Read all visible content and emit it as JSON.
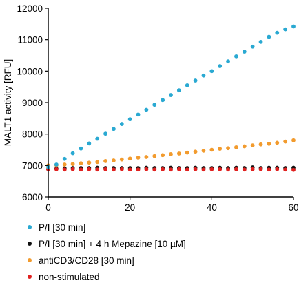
{
  "chart_data": {
    "type": "scatter",
    "title": "",
    "xlabel": "min",
    "ylabel": "MALT1 activity [RFU]",
    "xlim": [
      0,
      60
    ],
    "ylim": [
      6000,
      12000
    ],
    "xticks": [
      "0",
      "20",
      "40",
      "60"
    ],
    "yticks": [
      "6000",
      "7000",
      "8000",
      "9000",
      "10000",
      "11000",
      "12000"
    ],
    "grid": false,
    "legend_position": "bottom",
    "x": [
      0,
      2,
      4,
      6,
      8,
      10,
      12,
      14,
      16,
      18,
      20,
      22,
      24,
      26,
      28,
      30,
      32,
      34,
      36,
      38,
      40,
      42,
      44,
      46,
      48,
      50,
      52,
      54,
      56,
      58,
      60
    ],
    "series": [
      {
        "name": "P/I [30 min]",
        "color": "#2aa9d2",
        "values": [
          6950,
          7030,
          7210,
          7390,
          7540,
          7700,
          7850,
          8010,
          8160,
          8320,
          8470,
          8620,
          8770,
          8930,
          9080,
          9240,
          9390,
          9550,
          9700,
          9860,
          10000,
          10160,
          10310,
          10470,
          10620,
          10780,
          10930,
          11090,
          11220,
          11330,
          11420
        ]
      },
      {
        "name": "P/I [30 min] + 4 h Mepazine [10 µM]",
        "color": "#111111",
        "values": [
          6880,
          6900,
          6910,
          6920,
          6920,
          6920,
          6930,
          6920,
          6920,
          6920,
          6920,
          6920,
          6930,
          6920,
          6920,
          6930,
          6920,
          6920,
          6930,
          6920,
          6920,
          6930,
          6920,
          6930,
          6920,
          6940,
          6920,
          6930,
          6930,
          6920,
          6930
        ]
      },
      {
        "name": "antiCD3/CD28 [30 min]",
        "color": "#f29b2e",
        "values": [
          7000,
          7010,
          7030,
          7050,
          7070,
          7090,
          7110,
          7140,
          7160,
          7190,
          7220,
          7250,
          7270,
          7300,
          7330,
          7360,
          7380,
          7410,
          7440,
          7470,
          7500,
          7530,
          7550,
          7580,
          7610,
          7640,
          7670,
          7690,
          7720,
          7760,
          7800
        ]
      },
      {
        "name": "non-stimulated",
        "color": "#e0201f",
        "values": [
          6880,
          6880,
          6870,
          6880,
          6870,
          6880,
          6870,
          6880,
          6870,
          6880,
          6870,
          6870,
          6880,
          6870,
          6880,
          6870,
          6880,
          6870,
          6880,
          6870,
          6880,
          6880,
          6870,
          6880,
          6870,
          6880,
          6880,
          6870,
          6880,
          6870,
          6860
        ]
      }
    ]
  }
}
